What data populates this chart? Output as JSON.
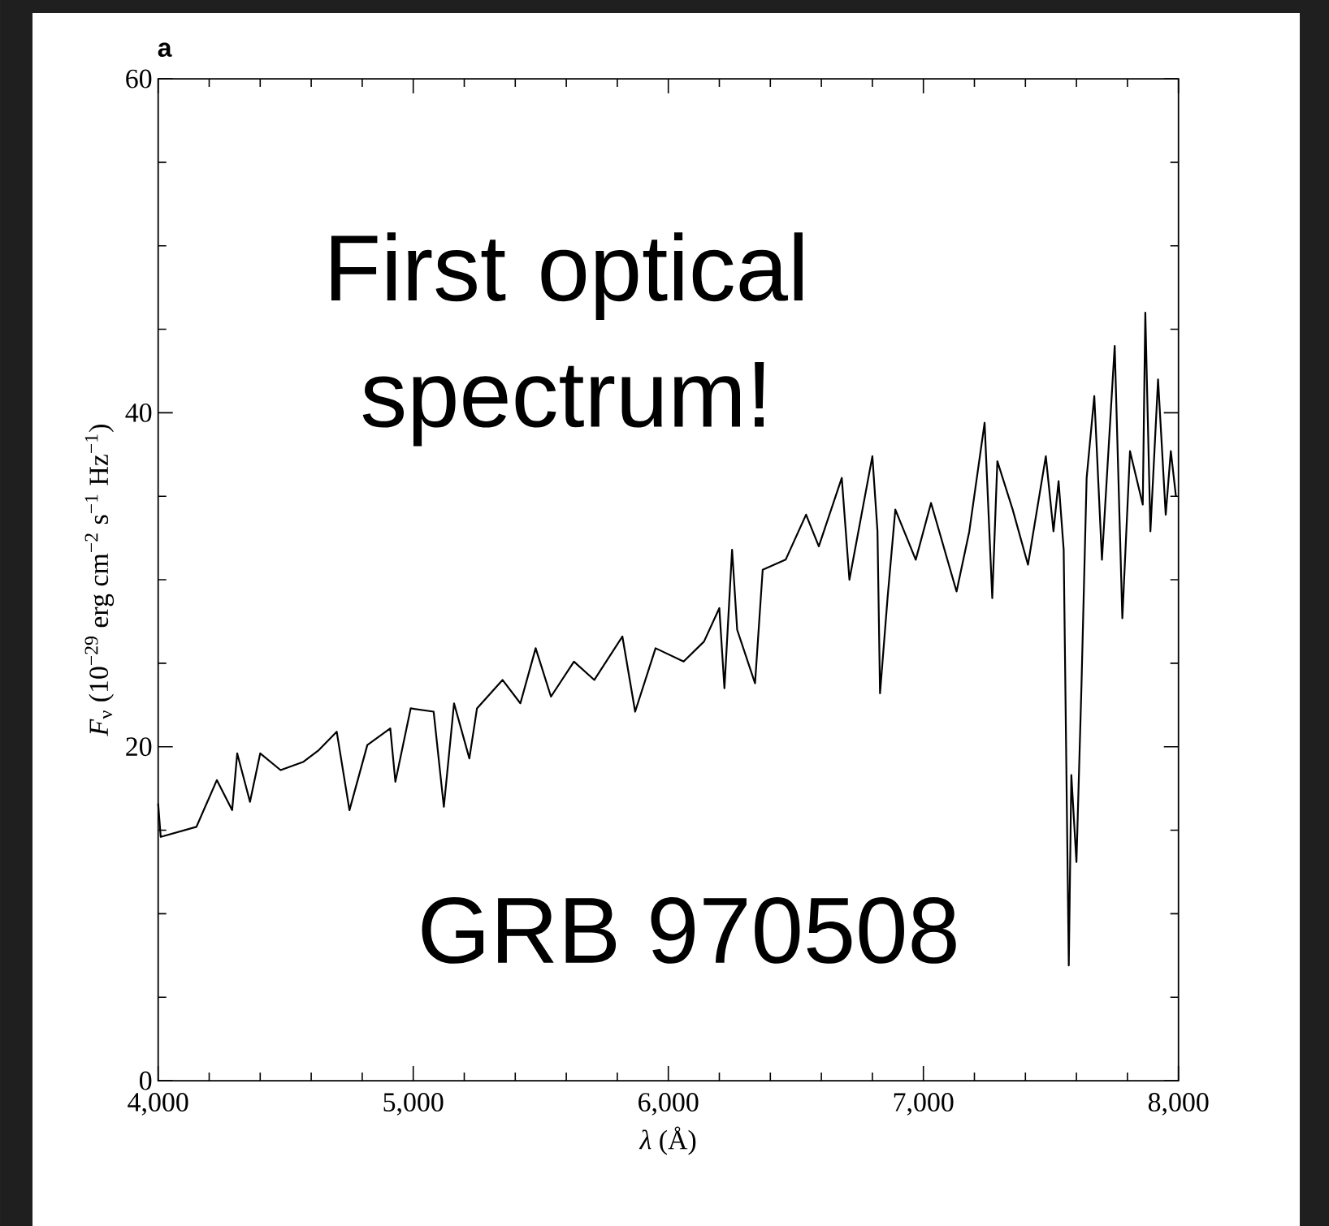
{
  "chart_data": {
    "type": "line",
    "xlabel": "*λ* (Å)",
    "ylabel": "*F*$_{ν}$ (10$^{−29}$ erg cm$^{−2}$ s$^{−1}$ Hz$^{−1}$)",
    "annotations": [
      "a",
      "First optical spectrum!",
      "GRB 970508"
    ],
    "xlim": [
      4000,
      8000
    ],
    "ylim": [
      0,
      60
    ],
    "xticks": [
      {
        "value": 4000,
        "label": "4,000"
      },
      {
        "value": 5000,
        "label": "5,000"
      },
      {
        "value": 6000,
        "label": "6,000"
      },
      {
        "value": 7000,
        "label": "7,000"
      },
      {
        "value": 8000,
        "label": "8,000"
      }
    ],
    "yticks": [
      0,
      20,
      40,
      60
    ],
    "line_style": "solid",
    "series": [
      {
        "color": "#000000",
        "x": [
          4000,
          4010,
          4150,
          4230,
          4290,
          4310,
          4360,
          4400,
          4480,
          4570,
          4630,
          4700,
          4750,
          4820,
          4910,
          4930,
          4990,
          5080,
          5120,
          5160,
          5220,
          5250,
          5350,
          5420,
          5480,
          5540,
          5630,
          5710,
          5820,
          5870,
          5950,
          6060,
          6140,
          6200,
          6220,
          6250,
          6270,
          6340,
          6370,
          6460,
          6540,
          6590,
          6680,
          6710,
          6800,
          6820,
          6830,
          6860,
          6890,
          6970,
          7030,
          7130,
          7180,
          7240,
          7270,
          7290,
          7350,
          7410,
          7480,
          7510,
          7530,
          7550,
          7570,
          7580,
          7600,
          7620,
          7640,
          7670,
          7700,
          7750,
          7780,
          7810,
          7860,
          7870,
          7890,
          7920,
          7950,
          7970,
          7990
        ],
        "values": [
          16.6,
          14.6,
          15.2,
          18.0,
          16.2,
          19.6,
          16.7,
          19.6,
          18.6,
          19.1,
          19.8,
          20.9,
          16.2,
          20.1,
          21.1,
          17.9,
          22.3,
          22.1,
          16.4,
          22.6,
          19.3,
          22.3,
          24.0,
          22.6,
          25.9,
          23.0,
          25.1,
          24.0,
          26.6,
          22.1,
          25.9,
          25.1,
          26.3,
          28.3,
          23.5,
          31.8,
          27.0,
          23.8,
          30.6,
          31.2,
          33.9,
          32.0,
          36.1,
          30.0,
          37.4,
          32.9,
          23.2,
          29.0,
          34.2,
          31.2,
          34.6,
          29.3,
          32.9,
          39.4,
          28.9,
          37.1,
          34.2,
          30.9,
          37.4,
          32.9,
          35.9,
          31.8,
          6.9,
          18.3,
          13.1,
          23.8,
          36.1,
          41.0,
          31.2,
          44.0,
          27.7,
          37.7,
          34.5,
          46.0,
          32.9,
          42.0,
          33.9,
          37.7,
          35.0
        ]
      }
    ]
  }
}
